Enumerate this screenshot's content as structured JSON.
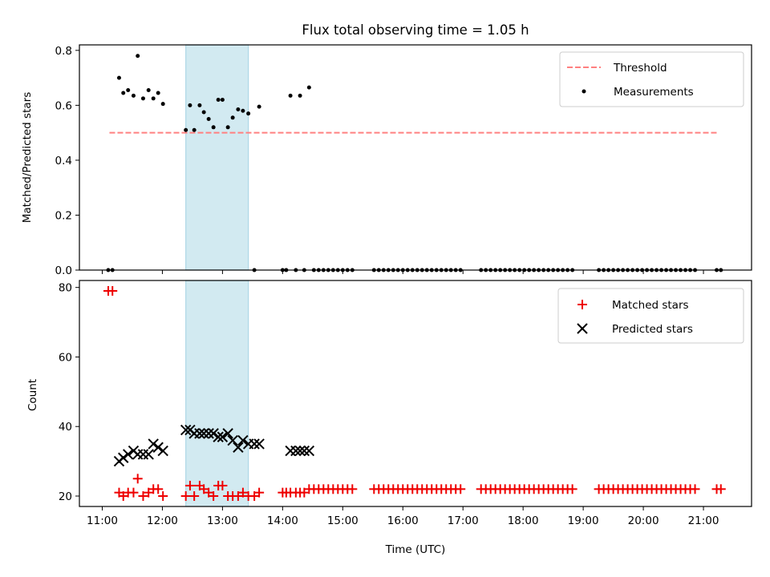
{
  "colors": {
    "threshold": "#ff8080",
    "measurement": "#000000",
    "matched": "#ee0000",
    "predicted": "#000000",
    "shade": "#add8e6"
  },
  "chart_data": [
    {
      "type": "scatter",
      "title": "Flux total observing time = 1.05 h",
      "xlabel": "",
      "ylabel": "Matched/Predicted stars",
      "xlim": [
        10.62,
        21.8
      ],
      "ylim": [
        0,
        0.82
      ],
      "yticks": [
        0,
        0.2,
        0.4,
        0.6,
        0.8
      ],
      "ytick_labels": [
        "0.0",
        "0.2",
        "0.4",
        "0.6",
        "0.8"
      ],
      "shaded_region": [
        12.39,
        13.43
      ],
      "legend": {
        "position": "upper right",
        "entries": [
          {
            "label": "Threshold",
            "style": "dashed-line"
          },
          {
            "label": "Measurements",
            "style": "dot"
          }
        ]
      },
      "threshold": {
        "name": "Threshold",
        "value": 0.5,
        "x_range": [
          11.12,
          21.22
        ]
      },
      "series": [
        {
          "name": "Measurements",
          "points": [
            [
              11.1,
              0
            ],
            [
              11.17,
              0
            ],
            [
              11.28,
              0.7
            ],
            [
              11.35,
              0.645
            ],
            [
              11.43,
              0.655
            ],
            [
              11.52,
              0.635
            ],
            [
              11.59,
              0.78
            ],
            [
              11.68,
              0.625
            ],
            [
              11.77,
              0.655
            ],
            [
              11.85,
              0.625
            ],
            [
              11.93,
              0.645
            ],
            [
              12.01,
              0.605
            ],
            [
              12.39,
              0.51
            ],
            [
              12.46,
              0.6
            ],
            [
              12.53,
              0.51
            ],
            [
              12.62,
              0.6
            ],
            [
              12.69,
              0.575
            ],
            [
              12.77,
              0.55
            ],
            [
              12.85,
              0.52
            ],
            [
              12.93,
              0.62
            ],
            [
              13.0,
              0.62
            ],
            [
              13.09,
              0.52
            ],
            [
              13.17,
              0.555
            ],
            [
              13.26,
              0.585
            ],
            [
              13.34,
              0.58
            ],
            [
              13.43,
              0.57
            ],
            [
              13.53,
              0
            ],
            [
              13.61,
              0.595
            ],
            [
              14.0,
              0
            ],
            [
              14.06,
              0
            ],
            [
              14.13,
              0.635
            ],
            [
              14.22,
              0
            ],
            [
              14.29,
              0.635
            ],
            [
              14.36,
              0
            ],
            [
              14.44,
              0.665
            ],
            [
              14.52,
              0
            ],
            [
              14.6,
              0
            ],
            [
              14.68,
              0
            ],
            [
              14.76,
              0
            ],
            [
              14.84,
              0
            ],
            [
              14.92,
              0
            ],
            [
              15.0,
              0
            ],
            [
              15.08,
              0
            ],
            [
              15.16,
              0
            ],
            [
              15.52,
              0
            ],
            [
              15.6,
              0
            ],
            [
              15.68,
              0
            ],
            [
              15.76,
              0
            ],
            [
              15.84,
              0
            ],
            [
              15.92,
              0
            ],
            [
              16.0,
              0
            ],
            [
              16.08,
              0
            ],
            [
              16.16,
              0
            ],
            [
              16.24,
              0
            ],
            [
              16.32,
              0
            ],
            [
              16.4,
              0
            ],
            [
              16.48,
              0
            ],
            [
              16.56,
              0
            ],
            [
              16.64,
              0
            ],
            [
              16.72,
              0
            ],
            [
              16.8,
              0
            ],
            [
              16.88,
              0
            ],
            [
              16.96,
              0
            ],
            [
              17.3,
              0
            ],
            [
              17.38,
              0
            ],
            [
              17.46,
              0
            ],
            [
              17.54,
              0
            ],
            [
              17.62,
              0
            ],
            [
              17.7,
              0
            ],
            [
              17.78,
              0
            ],
            [
              17.86,
              0
            ],
            [
              17.94,
              0
            ],
            [
              18.02,
              0
            ],
            [
              18.1,
              0
            ],
            [
              18.18,
              0
            ],
            [
              18.26,
              0
            ],
            [
              18.34,
              0
            ],
            [
              18.42,
              0
            ],
            [
              18.5,
              0
            ],
            [
              18.58,
              0
            ],
            [
              18.66,
              0
            ],
            [
              18.74,
              0
            ],
            [
              18.82,
              0
            ],
            [
              19.26,
              0
            ],
            [
              19.34,
              0
            ],
            [
              19.42,
              0
            ],
            [
              19.5,
              0
            ],
            [
              19.58,
              0
            ],
            [
              19.66,
              0
            ],
            [
              19.74,
              0
            ],
            [
              19.82,
              0
            ],
            [
              19.9,
              0
            ],
            [
              19.98,
              0
            ],
            [
              20.06,
              0
            ],
            [
              20.14,
              0
            ],
            [
              20.22,
              0
            ],
            [
              20.3,
              0
            ],
            [
              20.38,
              0
            ],
            [
              20.46,
              0
            ],
            [
              20.54,
              0
            ],
            [
              20.62,
              0
            ],
            [
              20.7,
              0
            ],
            [
              20.78,
              0
            ],
            [
              20.86,
              0
            ],
            [
              21.22,
              0
            ],
            [
              21.29,
              0
            ]
          ]
        }
      ]
    },
    {
      "type": "scatter",
      "title": "",
      "xlabel": "Time (UTC)",
      "ylabel": "Count",
      "xlim": [
        10.62,
        21.8
      ],
      "ylim": [
        17,
        82
      ],
      "xticks": [
        11,
        12,
        13,
        14,
        15,
        16,
        17,
        18,
        19,
        20,
        21
      ],
      "xtick_labels": [
        "11:00",
        "12:00",
        "13:00",
        "14:00",
        "15:00",
        "16:00",
        "17:00",
        "18:00",
        "19:00",
        "20:00",
        "21:00"
      ],
      "yticks": [
        20,
        40,
        60,
        80
      ],
      "ytick_labels": [
        "20",
        "40",
        "60",
        "80"
      ],
      "shaded_region": [
        12.39,
        13.43
      ],
      "legend": {
        "position": "upper right",
        "entries": [
          {
            "label": "Matched stars",
            "style": "plus"
          },
          {
            "label": "Predicted stars",
            "style": "x"
          }
        ]
      },
      "series": [
        {
          "name": "Matched stars",
          "points": [
            [
              11.1,
              79
            ],
            [
              11.17,
              79
            ],
            [
              11.28,
              21
            ],
            [
              11.35,
              20
            ],
            [
              11.43,
              21
            ],
            [
              11.52,
              21
            ],
            [
              11.59,
              25
            ],
            [
              11.68,
              20
            ],
            [
              11.77,
              21
            ],
            [
              11.85,
              22
            ],
            [
              11.93,
              22
            ],
            [
              12.01,
              20
            ],
            [
              12.39,
              20
            ],
            [
              12.46,
              23
            ],
            [
              12.53,
              20
            ],
            [
              12.62,
              23
            ],
            [
              12.69,
              22
            ],
            [
              12.77,
              21
            ],
            [
              12.85,
              20
            ],
            [
              12.93,
              23
            ],
            [
              13.0,
              23
            ],
            [
              13.09,
              20
            ],
            [
              13.17,
              20
            ],
            [
              13.26,
              20
            ],
            [
              13.34,
              21
            ],
            [
              13.43,
              20
            ],
            [
              13.53,
              20
            ],
            [
              13.61,
              21
            ],
            [
              14.0,
              21
            ],
            [
              14.06,
              21
            ],
            [
              14.13,
              21
            ],
            [
              14.22,
              21
            ],
            [
              14.29,
              21
            ],
            [
              14.36,
              21
            ],
            [
              14.44,
              22
            ],
            [
              14.52,
              22
            ],
            [
              14.6,
              22
            ],
            [
              14.68,
              22
            ],
            [
              14.76,
              22
            ],
            [
              14.84,
              22
            ],
            [
              14.92,
              22
            ],
            [
              15.0,
              22
            ],
            [
              15.08,
              22
            ],
            [
              15.16,
              22
            ],
            [
              15.52,
              22
            ],
            [
              15.6,
              22
            ],
            [
              15.68,
              22
            ],
            [
              15.76,
              22
            ],
            [
              15.84,
              22
            ],
            [
              15.92,
              22
            ],
            [
              16.0,
              22
            ],
            [
              16.08,
              22
            ],
            [
              16.16,
              22
            ],
            [
              16.24,
              22
            ],
            [
              16.32,
              22
            ],
            [
              16.4,
              22
            ],
            [
              16.48,
              22
            ],
            [
              16.56,
              22
            ],
            [
              16.64,
              22
            ],
            [
              16.72,
              22
            ],
            [
              16.8,
              22
            ],
            [
              16.88,
              22
            ],
            [
              16.96,
              22
            ],
            [
              17.3,
              22
            ],
            [
              17.38,
              22
            ],
            [
              17.46,
              22
            ],
            [
              17.54,
              22
            ],
            [
              17.62,
              22
            ],
            [
              17.7,
              22
            ],
            [
              17.78,
              22
            ],
            [
              17.86,
              22
            ],
            [
              17.94,
              22
            ],
            [
              18.02,
              22
            ],
            [
              18.1,
              22
            ],
            [
              18.18,
              22
            ],
            [
              18.26,
              22
            ],
            [
              18.34,
              22
            ],
            [
              18.42,
              22
            ],
            [
              18.5,
              22
            ],
            [
              18.58,
              22
            ],
            [
              18.66,
              22
            ],
            [
              18.74,
              22
            ],
            [
              18.82,
              22
            ],
            [
              19.26,
              22
            ],
            [
              19.34,
              22
            ],
            [
              19.42,
              22
            ],
            [
              19.5,
              22
            ],
            [
              19.58,
              22
            ],
            [
              19.66,
              22
            ],
            [
              19.74,
              22
            ],
            [
              19.82,
              22
            ],
            [
              19.9,
              22
            ],
            [
              19.98,
              22
            ],
            [
              20.06,
              22
            ],
            [
              20.14,
              22
            ],
            [
              20.22,
              22
            ],
            [
              20.3,
              22
            ],
            [
              20.38,
              22
            ],
            [
              20.46,
              22
            ],
            [
              20.54,
              22
            ],
            [
              20.62,
              22
            ],
            [
              20.7,
              22
            ],
            [
              20.78,
              22
            ],
            [
              20.86,
              22
            ],
            [
              21.22,
              22
            ],
            [
              21.29,
              22
            ]
          ]
        },
        {
          "name": "Predicted stars",
          "points": [
            [
              11.28,
              30
            ],
            [
              11.35,
              31
            ],
            [
              11.43,
              32
            ],
            [
              11.52,
              33
            ],
            [
              11.59,
              32
            ],
            [
              11.68,
              32
            ],
            [
              11.77,
              32
            ],
            [
              11.85,
              35
            ],
            [
              11.93,
              34
            ],
            [
              12.01,
              33
            ],
            [
              12.39,
              39
            ],
            [
              12.46,
              39
            ],
            [
              12.53,
              38
            ],
            [
              12.62,
              38
            ],
            [
              12.69,
              38
            ],
            [
              12.77,
              38
            ],
            [
              12.85,
              38
            ],
            [
              12.93,
              37
            ],
            [
              13.0,
              37
            ],
            [
              13.09,
              38
            ],
            [
              13.17,
              36
            ],
            [
              13.26,
              34
            ],
            [
              13.34,
              36
            ],
            [
              13.43,
              35
            ],
            [
              13.53,
              35
            ],
            [
              13.61,
              35
            ],
            [
              14.13,
              33
            ],
            [
              14.22,
              33
            ],
            [
              14.29,
              33
            ],
            [
              14.36,
              33
            ],
            [
              14.44,
              33
            ]
          ]
        }
      ]
    }
  ]
}
